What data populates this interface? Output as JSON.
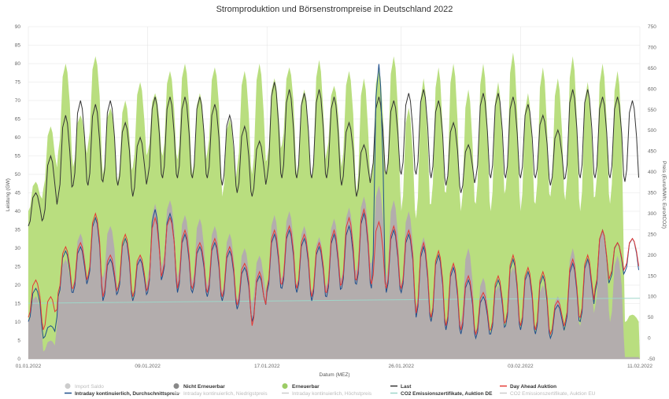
{
  "chart_data": {
    "type": "line",
    "title": "Stromproduktion und Börsenstrompreise in Deutschland 2022",
    "xlabel": "Datum (MEZ)",
    "ylabel_left": "Leistung (GW)",
    "ylabel_right": "Preis (Euro/MWh; Euro/tCO2)",
    "x_range": [
      "01.01.2022",
      "11.02.2022"
    ],
    "x_ticks": [
      "01.01.2022",
      "09.01.2022",
      "17.01.2022",
      "26.01.2022",
      "03.02.2022",
      "11.02.2022"
    ],
    "ylim_left": [
      0,
      90
    ],
    "yticks_left": [
      "0",
      "5",
      "10",
      "15",
      "20",
      "25",
      "30",
      "35",
      "40",
      "45",
      "50",
      "55",
      "60",
      "65",
      "70",
      "75",
      "80",
      "85",
      "90"
    ],
    "ylim_right": [
      -50,
      750
    ],
    "yticks_right": [
      "-50",
      "0",
      "50",
      "100",
      "150",
      "200",
      "250",
      "300",
      "350",
      "400",
      "450",
      "500",
      "550",
      "600",
      "650",
      "700",
      "750"
    ],
    "grid": true,
    "legend_position": "bottom",
    "colors": {
      "import": "#cccccc",
      "nicht_erneuerbar": "#b3adad",
      "erneuerbar": "#b9de7f",
      "last": "#333333",
      "day_ahead": "#e53935",
      "intraday": "#1f4e8c",
      "co2": "#9fd6c9"
    },
    "legend": [
      {
        "name": "Import Saldo",
        "marker": "dot",
        "color": "#cccccc",
        "active": false
      },
      {
        "name": "Nicht Erneuerbar",
        "marker": "dot",
        "color": "#888888",
        "active": true
      },
      {
        "name": "Erneuerbar",
        "marker": "dot",
        "color": "#9ccc65",
        "active": true
      },
      {
        "name": "Last",
        "marker": "line",
        "color": "#333333",
        "active": true
      },
      {
        "name": "Day Ahead Auktion",
        "marker": "line",
        "color": "#e53935",
        "active": true
      },
      {
        "name": "Intraday kontinuierlich, Durchschnittspreis",
        "marker": "line",
        "color": "#1f4e8c",
        "active": true
      },
      {
        "name": "Intraday kontinuierlich, Niedrigstpreis",
        "marker": "line",
        "color": "#cccccc",
        "active": false
      },
      {
        "name": "Intraday kontinuierlich, Höchstpreis",
        "marker": "line",
        "color": "#cccccc",
        "active": false
      },
      {
        "name": "CO2 Emissionszertifikate, Auktion DE",
        "marker": "line",
        "color": "#9fd6c9",
        "active": true
      },
      {
        "name": "CO2 Emissionszertifikate, Auktion EU",
        "marker": "line",
        "color": "#cccccc",
        "active": false
      }
    ],
    "series": [
      {
        "name": "Erneuerbar",
        "axis": "left",
        "type": "area",
        "days": [
          1,
          2,
          3,
          4,
          5,
          6,
          7,
          8,
          9,
          10,
          11,
          12,
          13,
          14,
          15,
          16,
          17,
          18,
          19,
          20,
          21,
          22,
          23,
          24,
          25,
          26,
          27,
          28,
          29,
          30,
          31,
          32,
          33,
          34,
          35,
          36,
          37,
          38,
          39,
          40,
          41
        ],
        "daily_peak": [
          48,
          63,
          80,
          66,
          82,
          68,
          70,
          75,
          72,
          78,
          80,
          72,
          79,
          65,
          78,
          80,
          76,
          79,
          73,
          81,
          74,
          78,
          76,
          79,
          82,
          68,
          76,
          79,
          80,
          73,
          80,
          75,
          83,
          72,
          79,
          76,
          82,
          75,
          80,
          78,
          12
        ],
        "daily_trough": [
          40,
          46,
          56,
          52,
          58,
          50,
          48,
          52,
          56,
          55,
          54,
          50,
          56,
          44,
          52,
          50,
          54,
          58,
          50,
          49,
          56,
          52,
          45,
          49,
          50,
          40,
          38,
          42,
          45,
          40,
          42,
          40,
          46,
          40,
          42,
          44,
          43,
          40,
          44,
          42,
          10
        ]
      },
      {
        "name": "Nicht Erneuerbar",
        "axis": "left",
        "type": "area",
        "days": [
          1,
          2,
          3,
          4,
          5,
          6,
          7,
          8,
          9,
          10,
          11,
          12,
          13,
          14,
          15,
          16,
          17,
          18,
          19,
          20,
          21,
          22,
          23,
          24,
          25,
          26,
          27,
          28,
          29,
          30,
          31,
          32,
          33,
          34,
          35,
          36,
          37,
          38,
          39,
          40,
          41
        ],
        "daily_peak": [
          17,
          5,
          27,
          34,
          38,
          36,
          32,
          28,
          42,
          43,
          39,
          38,
          36,
          34,
          30,
          28,
          39,
          40,
          36,
          33,
          38,
          41,
          44,
          47,
          43,
          40,
          33,
          28,
          26,
          30,
          22,
          20,
          25,
          24,
          20,
          17,
          30,
          27,
          35,
          28,
          0.5
        ],
        "daily_trough": [
          10,
          2,
          16,
          20,
          22,
          22,
          18,
          16,
          22,
          26,
          22,
          21,
          20,
          18,
          16,
          15,
          20,
          22,
          20,
          18,
          20,
          22,
          24,
          26,
          22,
          20,
          14,
          10,
          9,
          10,
          7,
          7,
          9,
          8,
          7,
          6,
          8,
          9,
          14,
          10,
          0.5
        ]
      },
      {
        "name": "Last",
        "axis": "left",
        "type": "line",
        "days": [
          1,
          2,
          3,
          4,
          5,
          6,
          7,
          8,
          9,
          10,
          11,
          12,
          13,
          14,
          15,
          16,
          17,
          18,
          19,
          20,
          21,
          22,
          23,
          24,
          25,
          26,
          27,
          28,
          29,
          30,
          31,
          32,
          33,
          34,
          35,
          36,
          37,
          38,
          39,
          40,
          41
        ],
        "daily_peak": [
          45,
          55,
          66,
          70,
          69,
          70,
          64,
          60,
          71,
          71,
          71,
          71,
          69,
          66,
          63,
          59,
          75,
          73,
          72,
          73,
          71,
          64,
          58,
          71,
          70,
          72,
          73,
          70,
          64,
          58,
          72,
          72,
          71,
          69,
          66,
          62,
          73,
          73,
          71,
          71,
          70
        ],
        "daily_trough": [
          36,
          38,
          44,
          47,
          47,
          48,
          47,
          44,
          49,
          49,
          49,
          49,
          49,
          47,
          45,
          44,
          49,
          49,
          49,
          49,
          49,
          47,
          44,
          50,
          50,
          50,
          50,
          49,
          47,
          45,
          49,
          49,
          49,
          49,
          49,
          47,
          49,
          49,
          49,
          49,
          48
        ]
      },
      {
        "name": "Day Ahead Auktion",
        "axis": "right",
        "type": "line",
        "days": [
          1,
          2,
          3,
          4,
          5,
          6,
          7,
          8,
          9,
          10,
          11,
          12,
          13,
          14,
          15,
          16,
          17,
          18,
          19,
          20,
          21,
          22,
          23,
          24,
          25,
          26,
          27,
          28,
          29,
          30,
          31,
          32,
          33,
          34,
          35,
          36,
          37,
          38,
          39,
          40,
          41
        ],
        "daily_peak": [
          140,
          100,
          220,
          230,
          300,
          200,
          250,
          200,
          290,
          290,
          260,
          230,
          240,
          220,
          180,
          160,
          260,
          270,
          250,
          230,
          260,
          290,
          310,
          280,
          270,
          260,
          230,
          210,
          180,
          150,
          110,
          150,
          200,
          170,
          160,
          90,
          190,
          200,
          260,
          230,
          240
        ],
        "daily_trough": [
          50,
          20,
          110,
          120,
          150,
          100,
          120,
          100,
          120,
          160,
          120,
          120,
          110,
          100,
          80,
          30,
          120,
          130,
          120,
          100,
          110,
          130,
          140,
          130,
          120,
          120,
          60,
          50,
          30,
          20,
          10,
          20,
          40,
          30,
          20,
          10,
          40,
          50,
          120,
          150,
          170
        ]
      },
      {
        "name": "Intraday kontinuierlich, Durchschnittspreis",
        "axis": "right",
        "type": "line",
        "days": [
          1,
          2,
          3,
          4,
          5,
          6,
          7,
          8,
          9,
          10,
          11,
          12,
          13,
          14,
          15,
          16,
          17,
          18,
          19,
          20,
          21,
          22,
          23,
          24,
          25,
          26,
          27,
          28,
          29,
          30,
          31,
          32,
          33,
          34,
          35,
          36,
          37,
          38,
          39,
          40,
          41
        ],
        "daily_peak": [
          120,
          30,
          210,
          220,
          290,
          190,
          240,
          190,
          310,
          300,
          250,
          220,
          230,
          210,
          170,
          150,
          250,
          260,
          240,
          220,
          250,
          270,
          300,
          660,
          260,
          250,
          220,
          200,
          170,
          140,
          100,
          140,
          190,
          160,
          150,
          80,
          180,
          190,
          260,
          230,
          240
        ],
        "daily_trough": [
          40,
          0,
          100,
          110,
          140,
          90,
          110,
          90,
          110,
          150,
          110,
          110,
          100,
          90,
          70,
          40,
          110,
          120,
          110,
          90,
          100,
          120,
          130,
          120,
          110,
          110,
          50,
          40,
          20,
          10,
          0,
          10,
          30,
          20,
          10,
          0,
          30,
          40,
          110,
          140,
          160
        ]
      },
      {
        "name": "CO2 Emissionszertifikate, Auktion DE",
        "axis": "right",
        "type": "line",
        "x_range": [
          "01.01.2022",
          "11.02.2022"
        ],
        "values": [
          84,
          86,
          88,
          90,
          92,
          94,
          95,
          96
        ]
      }
    ]
  }
}
